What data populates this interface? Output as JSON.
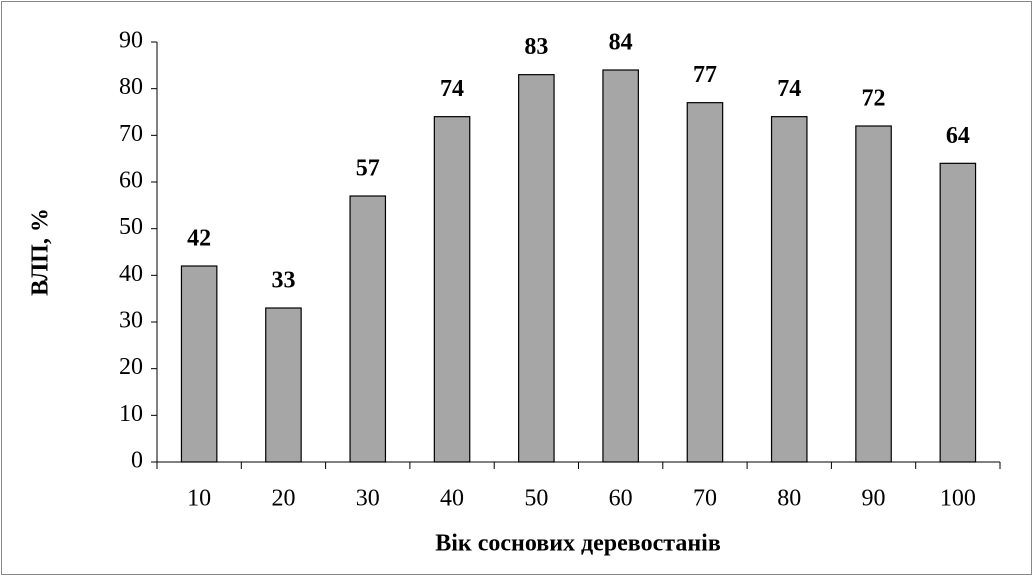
{
  "chart_data": {
    "type": "bar",
    "categories": [
      "10",
      "20",
      "30",
      "40",
      "50",
      "60",
      "70",
      "80",
      "90",
      "100"
    ],
    "values": [
      42,
      33,
      57,
      74,
      83,
      84,
      77,
      74,
      72,
      64
    ],
    "color": "#a6a6a6",
    "ylim": [
      0,
      90
    ],
    "yticks": [
      0,
      10,
      20,
      30,
      40,
      50,
      60,
      70,
      80,
      90
    ],
    "x_label": "Вік соснових деревостанів",
    "y_label": "ВЛП, %",
    "grid": false
  }
}
